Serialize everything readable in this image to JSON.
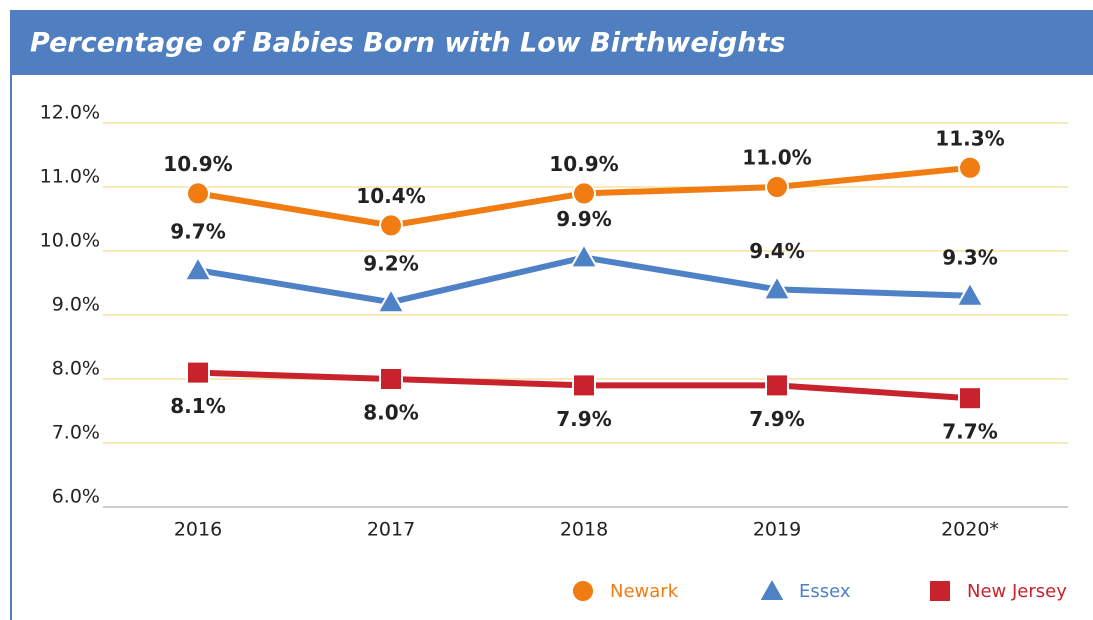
{
  "chart_data": {
    "type": "line",
    "title": "Percentage of Babies Born with Low Birthweights",
    "categories": [
      "2016",
      "2017",
      "2018",
      "2019",
      "2020*"
    ],
    "series": [
      {
        "name": "Newark",
        "color": "#f07c12",
        "marker": "circle",
        "values": [
          10.9,
          10.4,
          10.9,
          11.0,
          11.3
        ],
        "value_labels": [
          "10.9%",
          "10.4%",
          "10.9%",
          "11.0%",
          "11.3%"
        ]
      },
      {
        "name": "Essex",
        "color": "#4f81c7",
        "marker": "triangle",
        "values": [
          9.7,
          9.2,
          9.9,
          9.4,
          9.3
        ],
        "value_labels": [
          "9.7%",
          "9.2%",
          "9.9%",
          "9.4%",
          "9.3%"
        ]
      },
      {
        "name": "New Jersey",
        "color": "#c8232c",
        "marker": "square",
        "values": [
          8.1,
          8.0,
          7.9,
          7.9,
          7.7
        ],
        "value_labels": [
          "8.1%",
          "8.0%",
          "7.9%",
          "7.9%",
          "7.7%"
        ]
      }
    ],
    "ylim": [
      6,
      12
    ],
    "yticks": [
      {
        "value": 6,
        "label": "6.0%"
      },
      {
        "value": 7,
        "label": "7.0%"
      },
      {
        "value": 8,
        "label": "8.0%"
      },
      {
        "value": 9,
        "label": "9.0%"
      },
      {
        "value": 10,
        "label": "10.0%"
      },
      {
        "value": 11,
        "label": "11.0%"
      },
      {
        "value": 12,
        "label": "12.0%"
      }
    ],
    "grid": true,
    "legend": "bottom-right"
  }
}
